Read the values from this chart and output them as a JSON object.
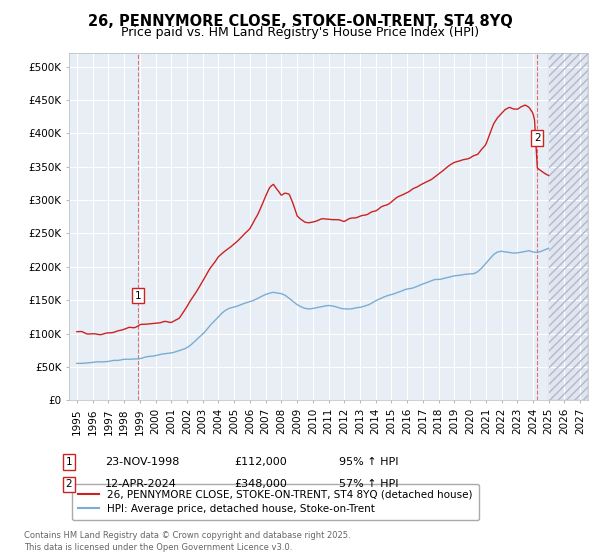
{
  "title1": "26, PENNYMORE CLOSE, STOKE-ON-TRENT, ST4 8YQ",
  "title2": "Price paid vs. HM Land Registry's House Price Index (HPI)",
  "ylim": [
    0,
    520000
  ],
  "yticks": [
    0,
    50000,
    100000,
    150000,
    200000,
    250000,
    300000,
    350000,
    400000,
    450000,
    500000
  ],
  "ytick_labels": [
    "£0",
    "£50K",
    "£100K",
    "£150K",
    "£200K",
    "£250K",
    "£300K",
    "£350K",
    "£400K",
    "£450K",
    "£500K"
  ],
  "xlim_start": 1994.5,
  "xlim_end": 2027.5,
  "xticks": [
    1995,
    1996,
    1997,
    1998,
    1999,
    2000,
    2001,
    2002,
    2003,
    2004,
    2005,
    2006,
    2007,
    2008,
    2009,
    2010,
    2011,
    2012,
    2013,
    2014,
    2015,
    2016,
    2017,
    2018,
    2019,
    2020,
    2021,
    2022,
    2023,
    2024,
    2025,
    2026,
    2027
  ],
  "background_color": "#e8eef5",
  "grid_color": "#ffffff",
  "fig_background": "#ffffff",
  "hpi_color": "#7aadd4",
  "price_color": "#cc2222",
  "sale1_x": 1998.9,
  "sale1_y": 112000,
  "sale2_x": 2024.28,
  "sale2_y": 348000,
  "legend_label1": "26, PENNYMORE CLOSE, STOKE-ON-TRENT, ST4 8YQ (detached house)",
  "legend_label2": "HPI: Average price, detached house, Stoke-on-Trent",
  "annotation1_date": "23-NOV-1998",
  "annotation1_price": "£112,000",
  "annotation1_hpi": "95% ↑ HPI",
  "annotation2_date": "12-APR-2024",
  "annotation2_price": "£348,000",
  "annotation2_hpi": "57% ↑ HPI",
  "footnote": "Contains HM Land Registry data © Crown copyright and database right 2025.\nThis data is licensed under the Open Government Licence v3.0.",
  "title_fontsize": 10.5,
  "subtitle_fontsize": 9,
  "tick_fontsize": 7.5,
  "legend_fontsize": 7.5,
  "annotation_fontsize": 8
}
